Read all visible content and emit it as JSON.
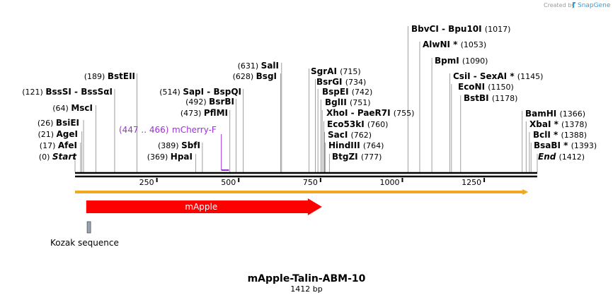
{
  "credit": {
    "text": "Created by",
    "brand": "SnapGene"
  },
  "map": {
    "title": "mApple-Talin-ABM-10",
    "length_label": "1412 bp",
    "length": 1412,
    "axis_ticks": [
      {
        "pos": 250,
        "label": "250"
      },
      {
        "pos": 500,
        "label": "500"
      },
      {
        "pos": 750,
        "label": "750"
      },
      {
        "pos": 1000,
        "label": "1000"
      },
      {
        "pos": 1250,
        "label": "1250"
      }
    ]
  },
  "sites": [
    {
      "pos": 0,
      "pos_label": "(0)",
      "name": "Start",
      "style": "italic"
    },
    {
      "pos": 17,
      "pos_label": "(17)",
      "name": "AfeI"
    },
    {
      "pos": 21,
      "pos_label": "(21)",
      "name": "AgeI"
    },
    {
      "pos": 26,
      "pos_label": "(26)",
      "name": "BsiEI"
    },
    {
      "pos": 64,
      "pos_label": "(64)",
      "name": "MscI"
    },
    {
      "pos": 121,
      "pos_label": "(121)",
      "name": "BssSI  -  BssSαI"
    },
    {
      "pos": 189,
      "pos_label": "(189)",
      "name": "BstEII"
    },
    {
      "pos": 369,
      "pos_label": "(369)",
      "name": "HpaI"
    },
    {
      "pos": 389,
      "pos_label": "(389)",
      "name": "SbfI"
    },
    {
      "pos": 473,
      "pos_label": "(473)",
      "name": "PflMI"
    },
    {
      "pos": 492,
      "pos_label": "(492)",
      "name": "BsrBI"
    },
    {
      "pos": 514,
      "pos_label": "(514)",
      "name": "SapI  -  BspQI"
    },
    {
      "pos": 628,
      "pos_label": "(628)",
      "name": "BsgI"
    },
    {
      "pos": 631,
      "pos_label": "(631)",
      "name": "SalI"
    },
    {
      "pos": 715,
      "pos_label": "(715)",
      "name": "SgrAI"
    },
    {
      "pos": 734,
      "pos_label": "(734)",
      "name": "BsrGI"
    },
    {
      "pos": 742,
      "pos_label": "(742)",
      "name": "BspEI"
    },
    {
      "pos": 751,
      "pos_label": "(751)",
      "name": "BglII"
    },
    {
      "pos": 755,
      "pos_label": "(755)",
      "name": "XhoI  -  PaeR7I"
    },
    {
      "pos": 760,
      "pos_label": "(760)",
      "name": "Eco53kI"
    },
    {
      "pos": 762,
      "pos_label": "(762)",
      "name": "SacI"
    },
    {
      "pos": 764,
      "pos_label": "(764)",
      "name": "HindIII"
    },
    {
      "pos": 777,
      "pos_label": "(777)",
      "name": "BtgZI"
    },
    {
      "pos": 1017,
      "pos_label": "(1017)",
      "name": "BbvCI  -  Bpu10I"
    },
    {
      "pos": 1053,
      "pos_label": "(1053)",
      "name": "AlwNI *"
    },
    {
      "pos": 1090,
      "pos_label": "(1090)",
      "name": "BpmI"
    },
    {
      "pos": 1145,
      "pos_label": "(1145)",
      "name": "CsiI  -  SexAI *"
    },
    {
      "pos": 1150,
      "pos_label": "(1150)",
      "name": "EcoNI"
    },
    {
      "pos": 1178,
      "pos_label": "(1178)",
      "name": "BstBI"
    },
    {
      "pos": 1366,
      "pos_label": "(1366)",
      "name": "BamHI"
    },
    {
      "pos": 1378,
      "pos_label": "(1378)",
      "name": "XbaI *"
    },
    {
      "pos": 1388,
      "pos_label": "(1388)",
      "name": "BclI *"
    },
    {
      "pos": 1393,
      "pos_label": "(1393)",
      "name": "BsaBI *"
    },
    {
      "pos": 1412,
      "pos_label": "(1412)",
      "name": "End",
      "style": "italic"
    }
  ],
  "primer": {
    "range_label": "(447 .. 466)",
    "name": "mCherry-F",
    "start": 447,
    "end": 466,
    "color": "#9b30d9"
  },
  "features": [
    {
      "name": "mApple",
      "start": 32,
      "end": 750,
      "color": "#ff0000",
      "type": "arrow"
    },
    {
      "name": "Kozak sequence",
      "start": 24,
      "end": 30,
      "color": "#9aa3b0",
      "type": "box"
    }
  ],
  "orf": {
    "start": 0,
    "end": 1380,
    "color": "#f0a820"
  },
  "colors": {
    "backbone": "#000000",
    "site_line": "#888888"
  }
}
